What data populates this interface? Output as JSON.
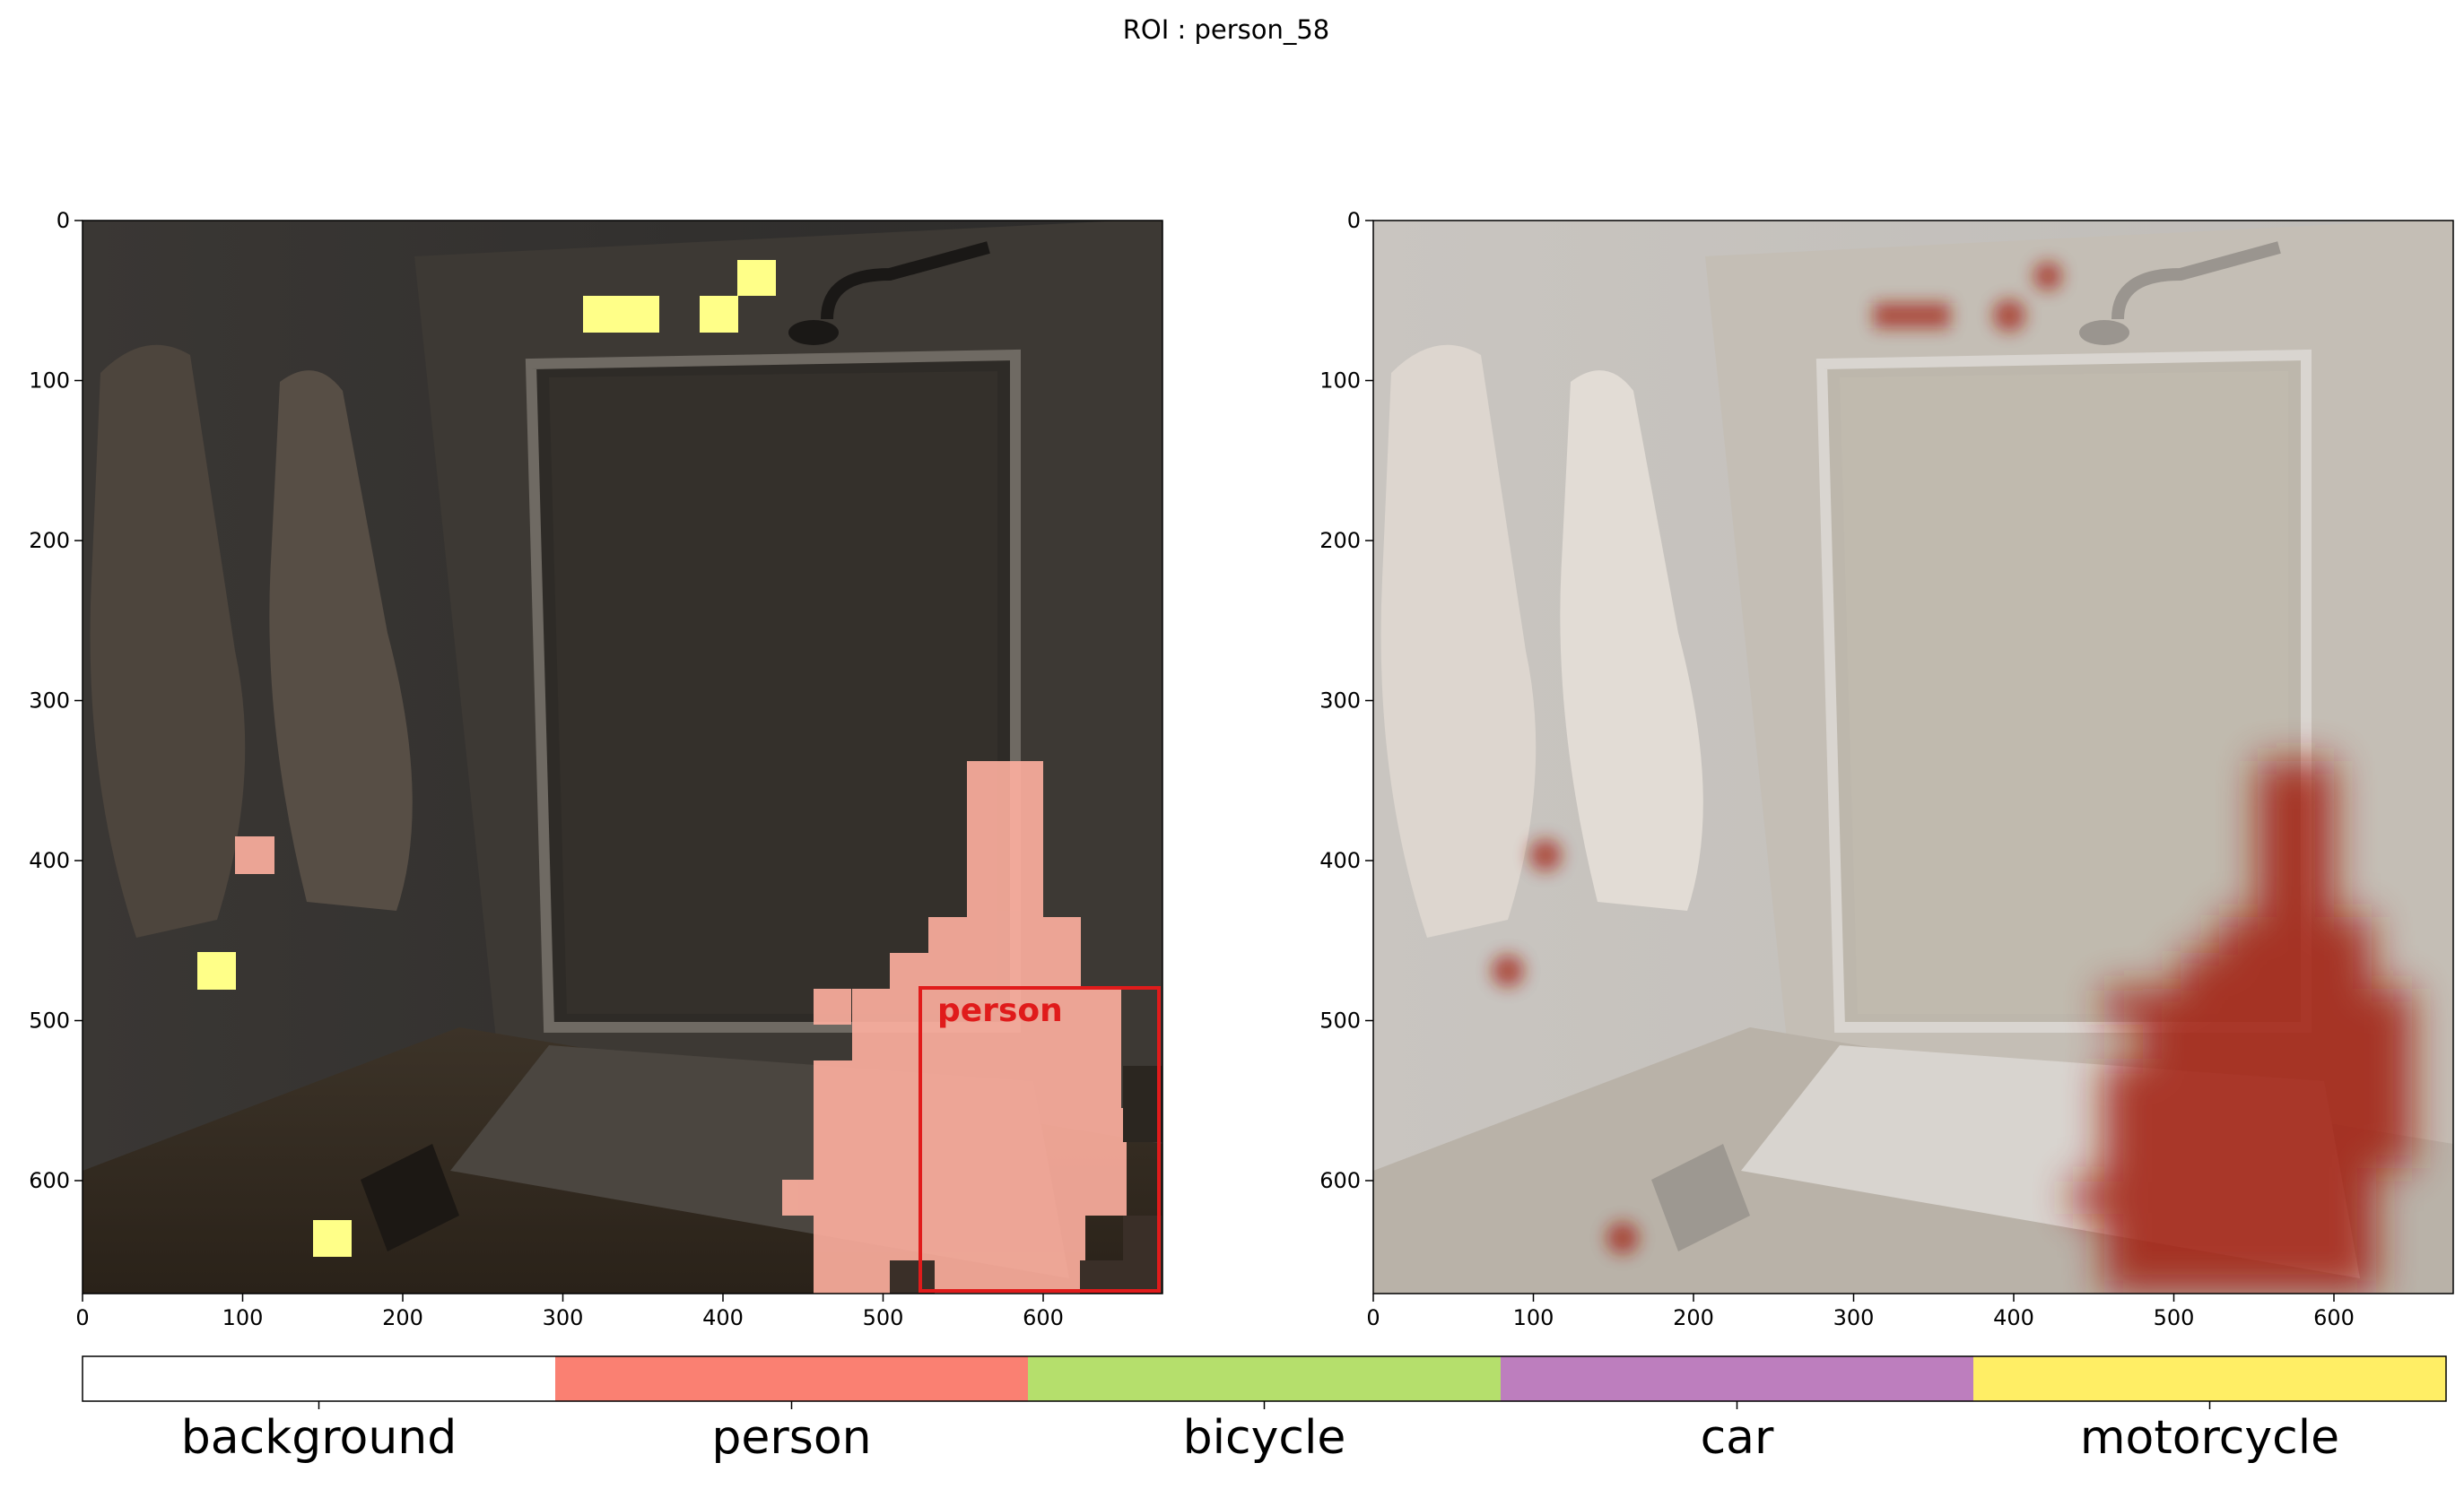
{
  "figure": {
    "title": "ROI : person_58"
  },
  "panels": [
    {
      "id": "left",
      "mode": "segmentation-overlay",
      "x_ticks": [
        "0",
        "100",
        "200",
        "300",
        "400",
        "500",
        "600"
      ],
      "y_ticks": [
        "0",
        "100",
        "200",
        "300",
        "400",
        "500",
        "600"
      ],
      "detection_label": "person",
      "box_color": "#e01b1b"
    },
    {
      "id": "right",
      "mode": "attention-heatmap",
      "x_ticks": [
        "0",
        "100",
        "200",
        "300",
        "400",
        "500",
        "600"
      ],
      "y_ticks": [
        "0",
        "100",
        "200",
        "300",
        "400",
        "500",
        "600"
      ]
    }
  ],
  "legend": {
    "items": [
      {
        "label": "background",
        "color": "#ffffff"
      },
      {
        "label": "person",
        "color": "#fa8072"
      },
      {
        "label": "bicycle",
        "color": "#b5df6c"
      },
      {
        "label": "car",
        "color": "#bd7ebe"
      },
      {
        "label": "motorcycle",
        "color": "#ffee65"
      }
    ]
  },
  "colors": {
    "person_overlay": "#ffb0a0",
    "motorcycle_overlay": "#ffff88",
    "heat": "#a11d10"
  }
}
